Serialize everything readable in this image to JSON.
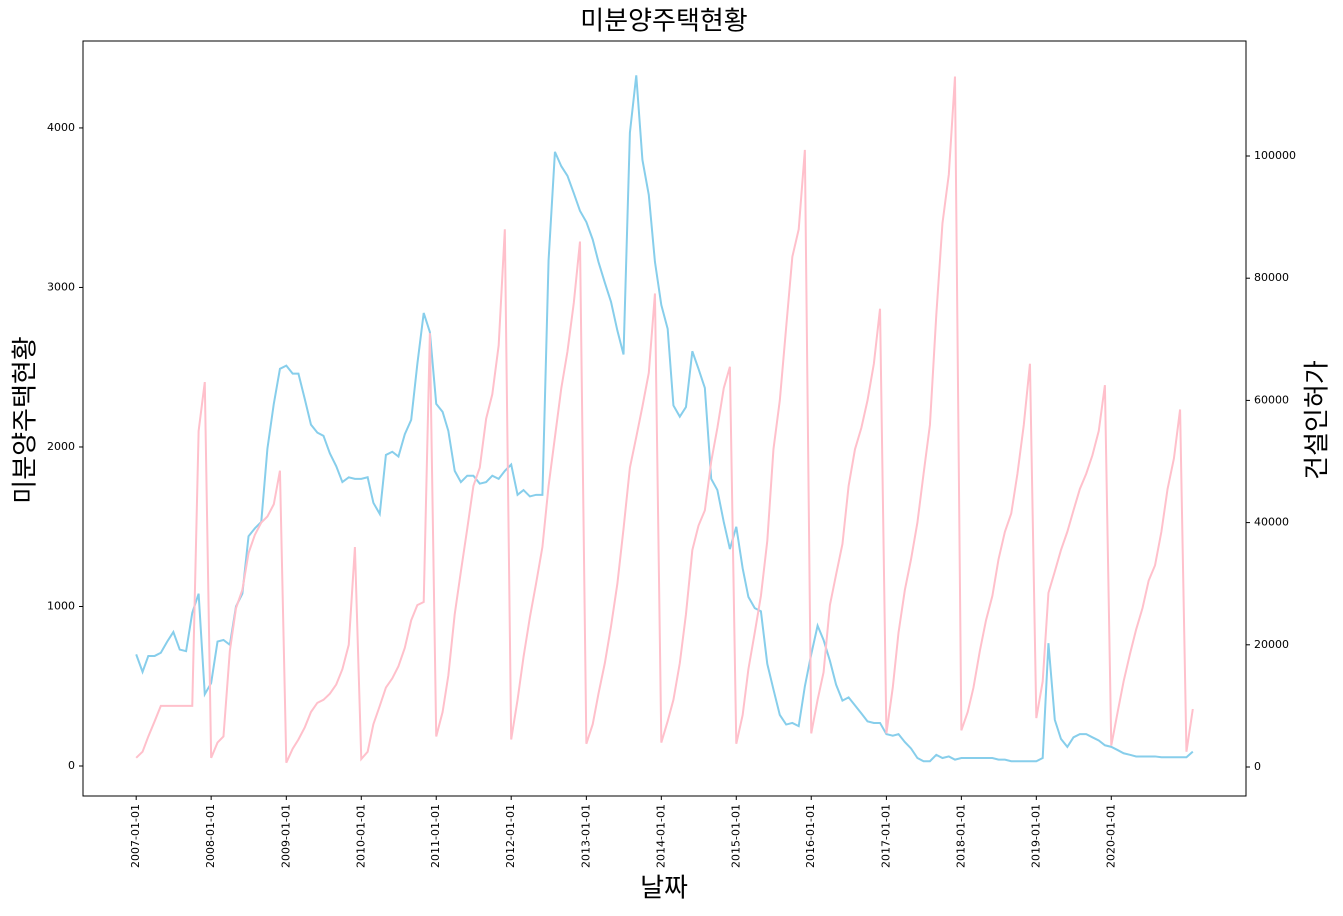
{
  "chart_data": {
    "type": "line",
    "title": "미분양주택현황",
    "xlabel": "날짜",
    "ylabel": "미분양주택현황",
    "y2label": "건설인허가",
    "x": [
      "2007-01-01",
      "2007-02-01",
      "2007-03-01",
      "2007-04-01",
      "2007-05-01",
      "2007-06-01",
      "2007-07-01",
      "2007-08-01",
      "2007-09-01",
      "2007-10-01",
      "2007-11-01",
      "2007-12-01",
      "2008-01-01",
      "2008-02-01",
      "2008-03-01",
      "2008-04-01",
      "2008-05-01",
      "2008-06-01",
      "2008-07-01",
      "2008-08-01",
      "2008-09-01",
      "2008-10-01",
      "2008-11-01",
      "2008-12-01",
      "2009-01-01",
      "2009-02-01",
      "2009-03-01",
      "2009-04-01",
      "2009-05-01",
      "2009-06-01",
      "2009-07-01",
      "2009-08-01",
      "2009-09-01",
      "2009-10-01",
      "2009-11-01",
      "2009-12-01",
      "2010-01-01",
      "2010-02-01",
      "2010-03-01",
      "2010-04-01",
      "2010-05-01",
      "2010-06-01",
      "2010-07-01",
      "2010-08-01",
      "2010-09-01",
      "2010-10-01",
      "2010-11-01",
      "2010-12-01",
      "2011-01-01",
      "2011-02-01",
      "2011-03-01",
      "2011-04-01",
      "2011-05-01",
      "2011-06-01",
      "2011-07-01",
      "2011-08-01",
      "2011-09-01",
      "2011-10-01",
      "2011-11-01",
      "2011-12-01",
      "2012-01-01",
      "2012-02-01",
      "2012-03-01",
      "2012-04-01",
      "2012-05-01",
      "2012-06-01",
      "2012-07-01",
      "2012-08-01",
      "2012-09-01",
      "2012-10-01",
      "2012-11-01",
      "2012-12-01",
      "2013-01-01",
      "2013-02-01",
      "2013-03-01",
      "2013-04-01",
      "2013-05-01",
      "2013-06-01",
      "2013-07-01",
      "2013-08-01",
      "2013-09-01",
      "2013-10-01",
      "2013-11-01",
      "2013-12-01",
      "2014-01-01",
      "2014-02-01",
      "2014-03-01",
      "2014-04-01",
      "2014-05-01",
      "2014-06-01",
      "2014-07-01",
      "2014-08-01",
      "2014-09-01",
      "2014-10-01",
      "2014-11-01",
      "2014-12-01",
      "2015-01-01",
      "2015-02-01",
      "2015-03-01",
      "2015-04-01",
      "2015-05-01",
      "2015-06-01",
      "2015-07-01",
      "2015-08-01",
      "2015-09-01",
      "2015-10-01",
      "2015-11-01",
      "2015-12-01",
      "2016-01-01",
      "2016-02-01",
      "2016-03-01",
      "2016-04-01",
      "2016-05-01",
      "2016-06-01",
      "2016-07-01",
      "2016-08-01",
      "2016-09-01",
      "2016-10-01",
      "2016-11-01",
      "2016-12-01",
      "2017-01-01",
      "2017-02-01",
      "2017-03-01",
      "2017-04-01",
      "2017-05-01",
      "2017-06-01",
      "2017-07-01",
      "2017-08-01",
      "2017-09-01",
      "2017-10-01",
      "2017-11-01",
      "2017-12-01",
      "2018-01-01",
      "2018-02-01",
      "2018-03-01",
      "2018-04-01",
      "2018-05-01",
      "2018-06-01",
      "2018-07-01",
      "2018-08-01",
      "2018-09-01",
      "2018-10-01",
      "2018-11-01",
      "2018-12-01",
      "2019-01-01",
      "2019-02-01",
      "2019-03-01",
      "2019-04-01",
      "2019-05-01",
      "2019-06-01",
      "2019-07-01",
      "2019-08-01",
      "2019-09-01",
      "2019-10-01",
      "2019-11-01",
      "2019-12-01",
      "2020-01-01",
      "2020-02-01",
      "2020-03-01",
      "2020-04-01",
      "2020-05-01",
      "2020-06-01",
      "2020-07-01",
      "2020-08-01",
      "2020-09-01",
      "2020-10-01",
      "2020-11-01",
      "2020-12-01",
      "2021-01-01",
      "2021-02-01"
    ],
    "series": [
      {
        "color": "#87ceeb",
        "axis": "y",
        "values": [
          700,
          590,
          690,
          690,
          710,
          780,
          840,
          730,
          720,
          960,
          1080,
          450,
          520,
          780,
          790,
          760,
          1000,
          1080,
          1440,
          1490,
          1530,
          1990,
          2270,
          2490,
          2510,
          2460,
          2460,
          2300,
          2140,
          2090,
          2070,
          1960,
          1880,
          1780,
          1810,
          1800,
          1800,
          1810,
          1650,
          1580,
          1950,
          1970,
          1940,
          2080,
          2170,
          2520,
          2840,
          2720,
          2270,
          2220,
          2100,
          1850,
          1780,
          1820,
          1820,
          1770,
          1780,
          1820,
          1800,
          1850,
          1890,
          1700,
          1730,
          1690,
          1700,
          1700,
          3170,
          3850,
          3760,
          3700,
          3590,
          3480,
          3410,
          3300,
          3160,
          3030,
          2910,
          2730,
          2580,
          3970,
          4330,
          3800,
          3580,
          3160,
          2890,
          2740,
          2260,
          2190,
          2250,
          2600,
          2490,
          2370,
          1800,
          1730,
          1530,
          1360,
          1500,
          1240,
          1060,
          990,
          970,
          640,
          480,
          320,
          260,
          270,
          250,
          500,
          700,
          880,
          790,
          660,
          510,
          410,
          430,
          380,
          330,
          280,
          270,
          270,
          200,
          190,
          200,
          150,
          110,
          50,
          30,
          30,
          70,
          50,
          60,
          40,
          50,
          50,
          50,
          50,
          50,
          50,
          40,
          40,
          30,
          30,
          30,
          30,
          30,
          50,
          770,
          290,
          170,
          120,
          180,
          200,
          200,
          180,
          160,
          130,
          120,
          100,
          80,
          70,
          60,
          60,
          60,
          60,
          55,
          55,
          55,
          55,
          55,
          90
        ]
      },
      {
        "color": "#ffc0cb",
        "axis": "y2",
        "values": [
          1500,
          2500,
          5000,
          7500,
          10000,
          10000,
          10000,
          10000,
          10000,
          10000,
          55000,
          63000,
          1500,
          4000,
          5000,
          19000,
          26000,
          29000,
          35000,
          38000,
          40000,
          41000,
          43000,
          48500,
          700,
          3000,
          4500,
          6500,
          9000,
          10500,
          11000,
          12000,
          13500,
          16000,
          20000,
          36000,
          1300,
          2500,
          7000,
          10000,
          13000,
          14500,
          16500,
          19500,
          24000,
          26500,
          27000,
          71000,
          5000,
          9000,
          15000,
          25000,
          32000,
          39000,
          46000,
          49000,
          57000,
          61000,
          69000,
          88000,
          4500,
          11000,
          18000,
          24500,
          30000,
          36000,
          46000,
          54000,
          62000,
          68000,
          76000,
          86000,
          3800,
          7000,
          12000,
          17000,
          23000,
          30000,
          39000,
          49000,
          54000,
          59000,
          64500,
          77500,
          4000,
          7500,
          11000,
          17000,
          25000,
          35500,
          39500,
          42000,
          50000,
          55500,
          62000,
          65500,
          3800,
          8500,
          16000,
          22000,
          28000,
          37000,
          52000,
          60000,
          72000,
          83500,
          88000,
          101000,
          5500,
          11000,
          15500,
          26500,
          31500,
          36500,
          46000,
          52000,
          55500,
          60000,
          66000,
          75000,
          5500,
          13000,
          22000,
          29000,
          34000,
          40000,
          48000,
          56000,
          74000,
          89000,
          97000,
          113000,
          6000,
          9000,
          13000,
          19000,
          24000,
          28000,
          34000,
          38500,
          41500,
          48000,
          56000,
          66000,
          8000,
          14000,
          28500,
          32000,
          35500,
          38500,
          42000,
          45500,
          48000,
          51000,
          55000,
          62500,
          3500,
          9000,
          14000,
          18500,
          22500,
          26000,
          30500,
          33000,
          38500,
          45500,
          50500,
          58500,
          2500,
          9500
        ]
      }
    ],
    "xlim": [
      "2006-04-17",
      "2021-10-18"
    ],
    "xticks": [
      "2007-01-01",
      "2008-01-01",
      "2009-01-01",
      "2010-01-01",
      "2011-01-01",
      "2012-01-01",
      "2013-01-01",
      "2014-01-01",
      "2015-01-01",
      "2016-01-01",
      "2017-01-01",
      "2018-01-01",
      "2019-01-01",
      "2020-01-01"
    ],
    "ylim": [
      -188,
      4545
    ],
    "yticks": [
      0,
      1000,
      2000,
      3000,
      4000
    ],
    "y2lim": [
      -4746,
      118821
    ],
    "y2ticks": [
      0,
      20000,
      40000,
      60000,
      80000,
      100000
    ]
  }
}
